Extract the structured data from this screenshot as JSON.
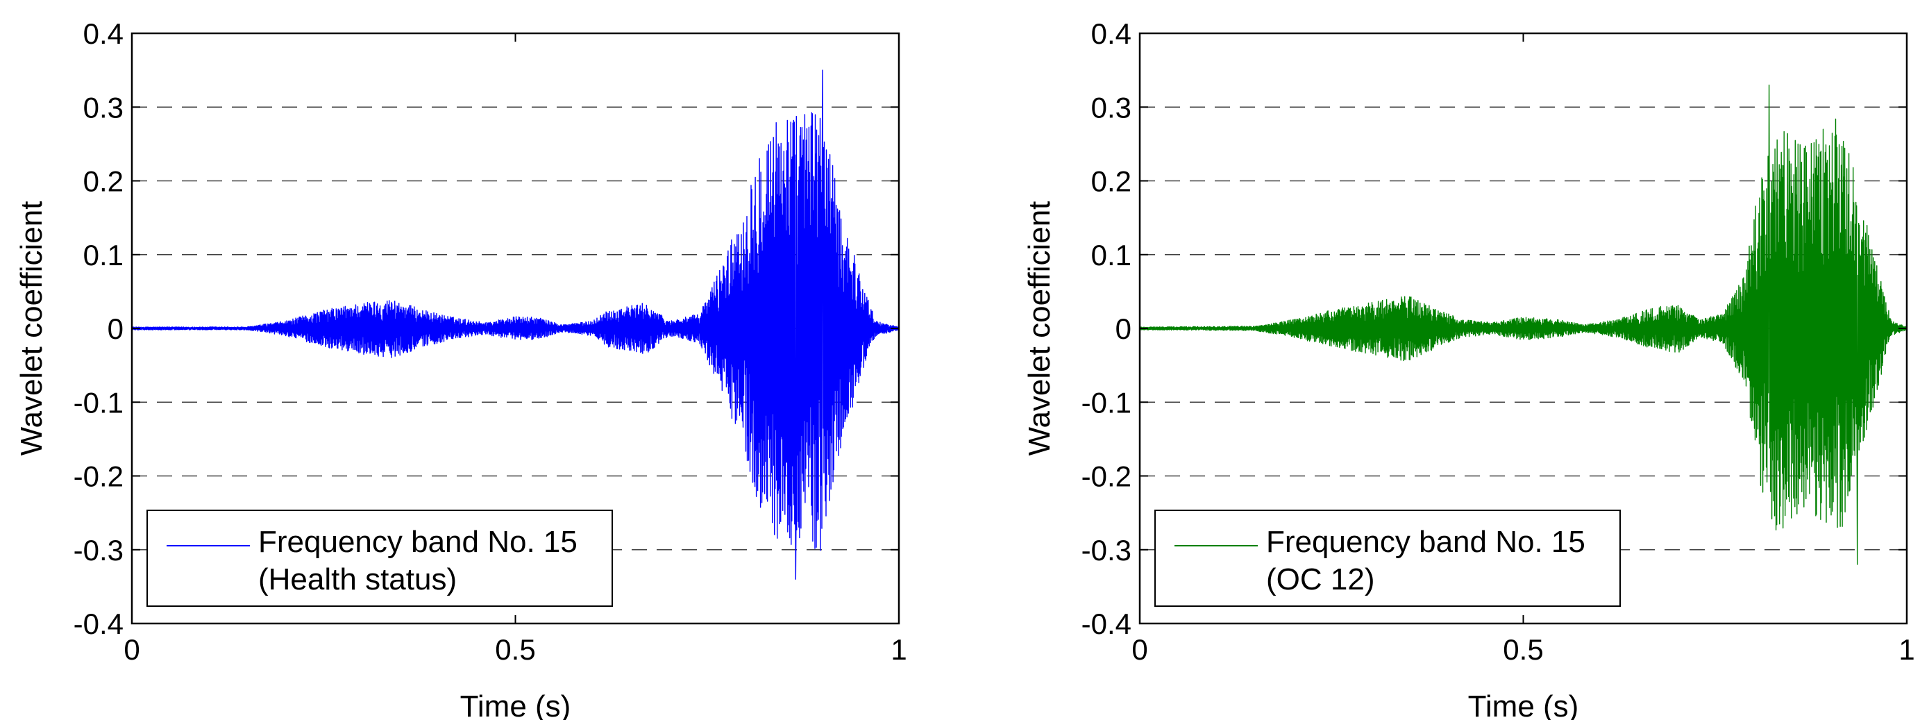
{
  "colors": {
    "health": "#0000ff",
    "oc12": "#008000",
    "axis": "#000000",
    "grid": "#000000",
    "background": "#ffffff"
  },
  "chart_data": [
    {
      "type": "line",
      "id": "left",
      "xlabel": "Time (s)",
      "ylabel": "Wavelet coefficient",
      "xlim": [
        0,
        1
      ],
      "ylim": [
        -0.4,
        0.4
      ],
      "xticks": [
        0,
        0.5,
        1
      ],
      "xtick_labels": [
        "0",
        "0.5",
        "1"
      ],
      "yticks": [
        0.4,
        0.3,
        0.2,
        0.1,
        0,
        -0.1,
        -0.2,
        -0.3,
        -0.4
      ],
      "ytick_labels": [
        "0.4",
        "0.3",
        "0.2",
        "0.1",
        "0",
        "-0.1",
        "-0.2",
        "-0.3",
        "-0.4"
      ],
      "grid": "horizontal dashed",
      "legend_position": "bottom-left",
      "series": [
        {
          "name_line1": "Frequency band No. 15",
          "name_line2": "(Health status)",
          "color": "#0000ff",
          "envelope": [
            [
              0.0,
              0.002
            ],
            [
              0.15,
              0.002
            ],
            [
              0.2,
              0.01
            ],
            [
              0.25,
              0.025
            ],
            [
              0.3,
              0.035
            ],
            [
              0.34,
              0.04
            ],
            [
              0.38,
              0.025
            ],
            [
              0.42,
              0.015
            ],
            [
              0.46,
              0.008
            ],
            [
              0.5,
              0.016
            ],
            [
              0.53,
              0.015
            ],
            [
              0.56,
              0.005
            ],
            [
              0.6,
              0.01
            ],
            [
              0.62,
              0.025
            ],
            [
              0.67,
              0.035
            ],
            [
              0.7,
              0.01
            ],
            [
              0.74,
              0.02
            ],
            [
              0.77,
              0.09
            ],
            [
              0.8,
              0.17
            ],
            [
              0.82,
              0.26
            ],
            [
              0.85,
              0.3
            ],
            [
              0.87,
              0.29
            ],
            [
              0.9,
              0.31
            ],
            [
              0.92,
              0.18
            ],
            [
              0.95,
              0.07
            ],
            [
              0.97,
              0.01
            ],
            [
              1.0,
              0.002
            ]
          ],
          "peak_max": 0.35,
          "peak_min": -0.34
        }
      ]
    },
    {
      "type": "line",
      "id": "right",
      "xlabel": "Time (s)",
      "ylabel": "Wavelet coefficient",
      "xlim": [
        0,
        1
      ],
      "ylim": [
        -0.4,
        0.4
      ],
      "xticks": [
        0,
        0.5,
        1
      ],
      "xtick_labels": [
        "0",
        "0.5",
        "1"
      ],
      "yticks": [
        0.4,
        0.3,
        0.2,
        0.1,
        0,
        -0.1,
        -0.2,
        -0.3,
        -0.4
      ],
      "ytick_labels": [
        "0.4",
        "0.3",
        "0.2",
        "0.1",
        "0",
        "-0.1",
        "-0.2",
        "-0.3",
        "-0.4"
      ],
      "grid": "horizontal dashed",
      "legend_position": "bottom-left",
      "series": [
        {
          "name_line1": "Frequency band No. 15",
          "name_line2": "(OC 12)",
          "color": "#008000",
          "envelope": [
            [
              0.0,
              0.002
            ],
            [
              0.15,
              0.003
            ],
            [
              0.2,
              0.012
            ],
            [
              0.25,
              0.025
            ],
            [
              0.3,
              0.035
            ],
            [
              0.35,
              0.045
            ],
            [
              0.38,
              0.03
            ],
            [
              0.42,
              0.012
            ],
            [
              0.46,
              0.008
            ],
            [
              0.5,
              0.016
            ],
            [
              0.54,
              0.013
            ],
            [
              0.58,
              0.005
            ],
            [
              0.62,
              0.012
            ],
            [
              0.66,
              0.025
            ],
            [
              0.7,
              0.035
            ],
            [
              0.73,
              0.012
            ],
            [
              0.76,
              0.02
            ],
            [
              0.79,
              0.08
            ],
            [
              0.81,
              0.22
            ],
            [
              0.83,
              0.28
            ],
            [
              0.86,
              0.25
            ],
            [
              0.89,
              0.27
            ],
            [
              0.91,
              0.3
            ],
            [
              0.93,
              0.22
            ],
            [
              0.96,
              0.09
            ],
            [
              0.98,
              0.01
            ],
            [
              1.0,
              0.002
            ]
          ],
          "peak_max": 0.33,
          "peak_min": -0.32
        }
      ]
    }
  ]
}
